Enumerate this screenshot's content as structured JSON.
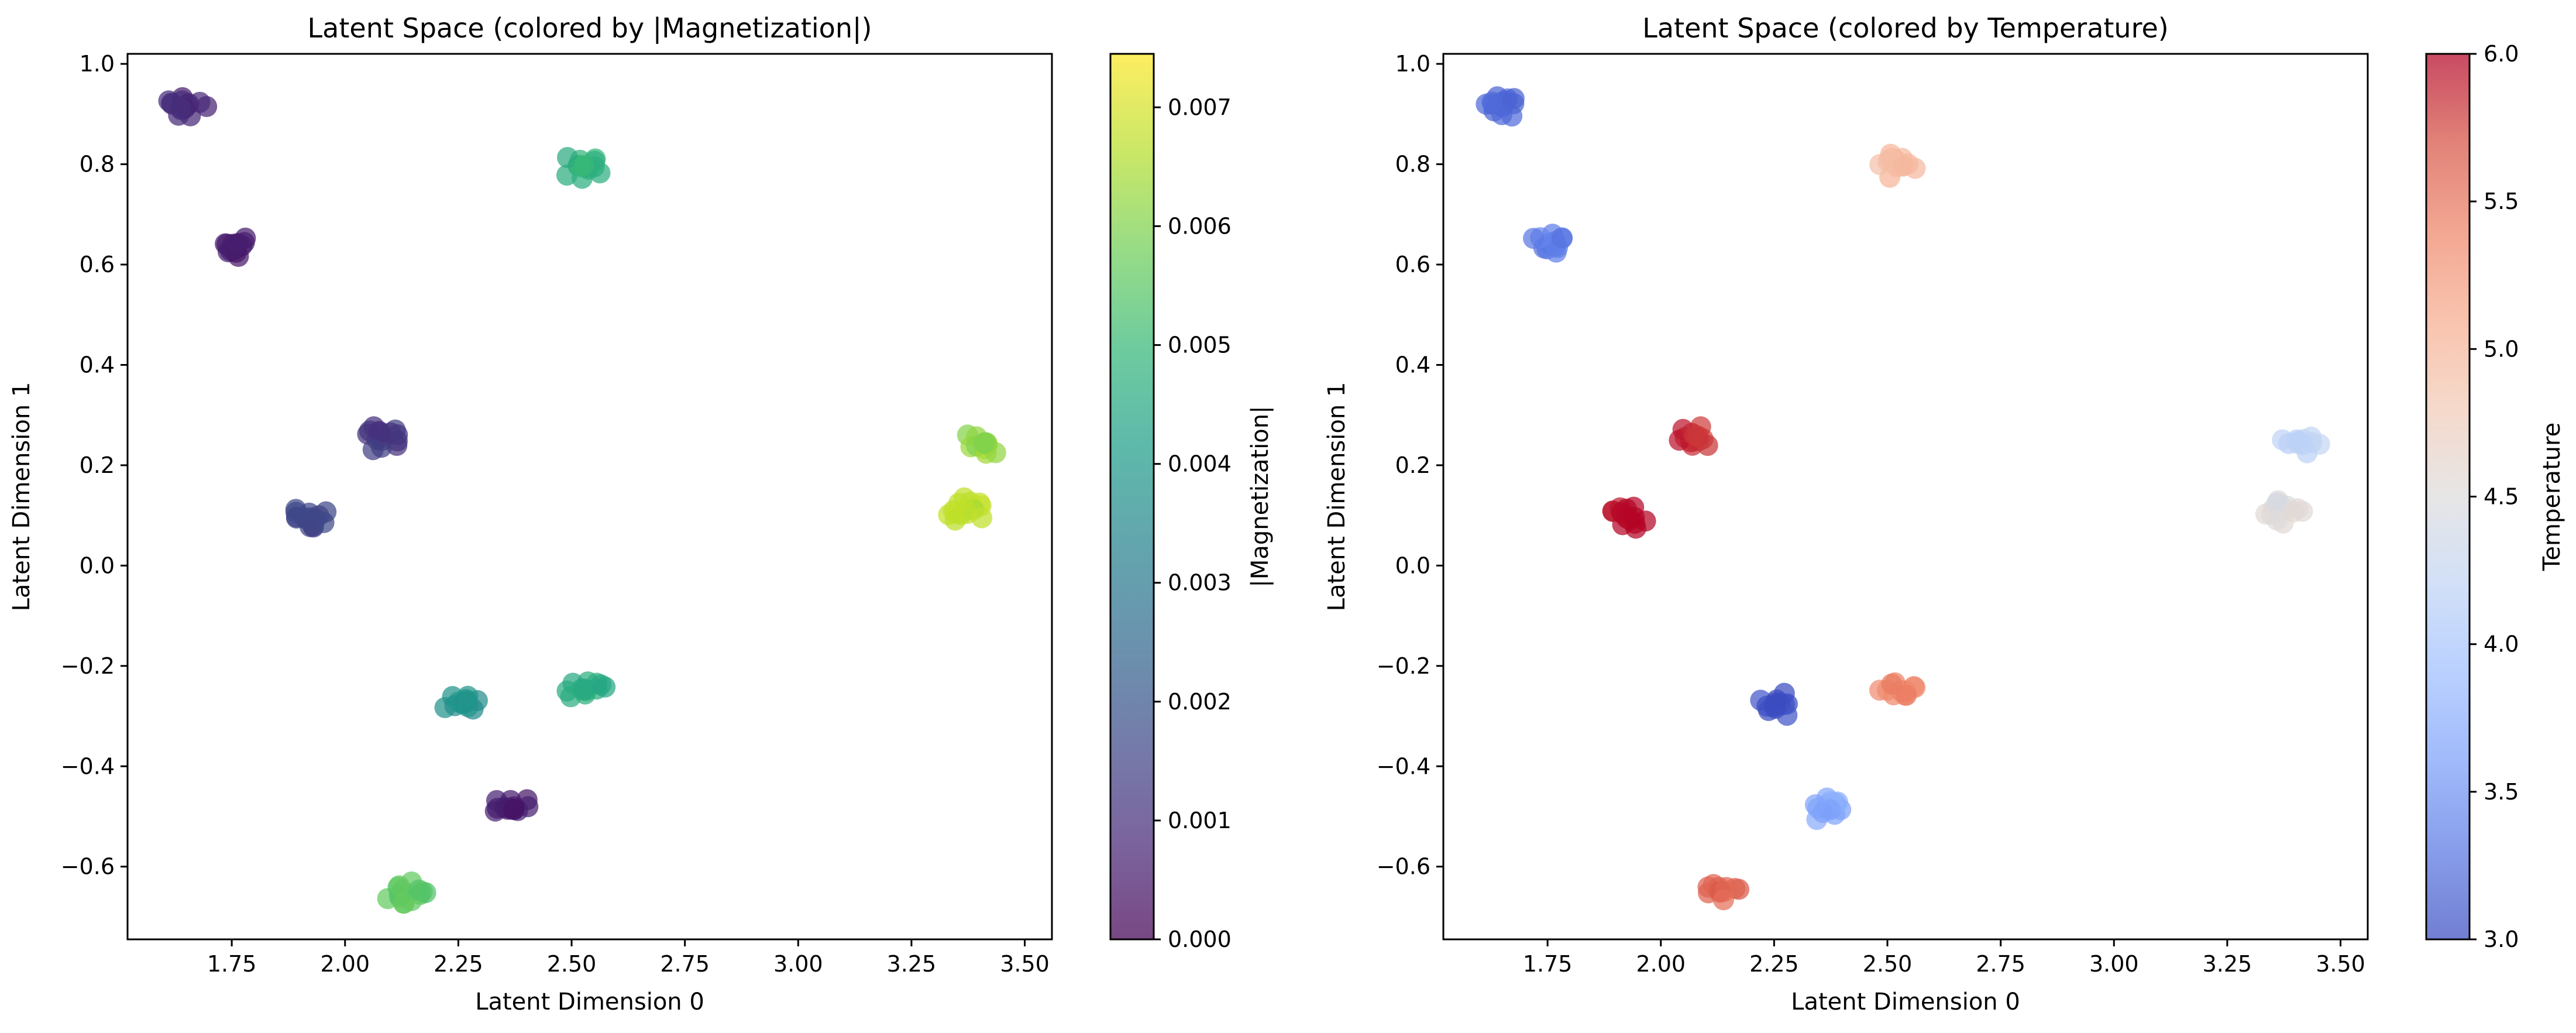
{
  "chart_data": [
    {
      "type": "scatter",
      "title": "Latent Space (colored by |Magnetization|)",
      "xlabel": "Latent Dimension 0",
      "ylabel": "Latent Dimension 1",
      "xlim": [
        1.52,
        3.56
      ],
      "ylim": [
        -0.745,
        1.02
      ],
      "xticks": [
        1.75,
        2.0,
        2.25,
        2.5,
        2.75,
        3.0,
        3.25,
        3.5
      ],
      "xtick_labels": [
        "1.75",
        "2.00",
        "2.25",
        "2.50",
        "2.75",
        "3.00",
        "3.25",
        "3.50"
      ],
      "yticks": [
        -0.6,
        -0.4,
        -0.2,
        0.0,
        0.2,
        0.4,
        0.6,
        0.8,
        1.0
      ],
      "ytick_labels": [
        "−0.6",
        "−0.4",
        "−0.2",
        "0.0",
        "0.2",
        "0.4",
        "0.6",
        "0.8",
        "1.0"
      ],
      "colorbar": {
        "label": "|Magnetization|",
        "colormap": "viridis",
        "range": [
          0.0,
          0.00745
        ],
        "ticks": [
          0.0,
          0.001,
          0.002,
          0.003,
          0.004,
          0.005,
          0.006,
          0.007
        ],
        "tick_labels": [
          "0.000",
          "0.001",
          "0.002",
          "0.003",
          "0.004",
          "0.005",
          "0.006",
          "0.007"
        ]
      },
      "clusters": [
        {
          "x": 1.65,
          "y": 0.915,
          "color_value": 0.0008
        },
        {
          "x": 1.76,
          "y": 0.64,
          "color_value": 0.0005
        },
        {
          "x": 2.52,
          "y": 0.795,
          "color_value": 0.0048
        },
        {
          "x": 2.08,
          "y": 0.255,
          "color_value": 0.0012
        },
        {
          "x": 1.92,
          "y": 0.095,
          "color_value": 0.0015
        },
        {
          "x": 3.41,
          "y": 0.245,
          "color_value": 0.0062
        },
        {
          "x": 3.37,
          "y": 0.11,
          "color_value": 0.0066
        },
        {
          "x": 2.26,
          "y": -0.275,
          "color_value": 0.0038
        },
        {
          "x": 2.53,
          "y": -0.25,
          "color_value": 0.0046
        },
        {
          "x": 2.37,
          "y": -0.485,
          "color_value": 0.0006
        },
        {
          "x": 2.13,
          "y": -0.65,
          "color_value": 0.0055
        }
      ]
    },
    {
      "type": "scatter",
      "title": "Latent Space (colored by Temperature)",
      "xlabel": "Latent Dimension 0",
      "ylabel": "Latent Dimension 1",
      "xlim": [
        1.52,
        3.56
      ],
      "ylim": [
        -0.745,
        1.02
      ],
      "xticks": [
        1.75,
        2.0,
        2.25,
        2.5,
        2.75,
        3.0,
        3.25,
        3.5
      ],
      "xtick_labels": [
        "1.75",
        "2.00",
        "2.25",
        "2.50",
        "2.75",
        "3.00",
        "3.25",
        "3.50"
      ],
      "yticks": [
        -0.6,
        -0.4,
        -0.2,
        0.0,
        0.2,
        0.4,
        0.6,
        0.8,
        1.0
      ],
      "ytick_labels": [
        "−0.6",
        "−0.4",
        "−0.2",
        "0.0",
        "0.2",
        "0.4",
        "0.6",
        "0.8",
        "1.0"
      ],
      "colorbar": {
        "label": "Temperature",
        "colormap": "coolwarm",
        "range": [
          3.0,
          6.0
        ],
        "ticks": [
          3.0,
          3.5,
          4.0,
          4.5,
          5.0,
          5.5,
          6.0
        ],
        "tick_labels": [
          "3.0",
          "3.5",
          "4.0",
          "4.5",
          "5.0",
          "5.5",
          "6.0"
        ]
      },
      "clusters": [
        {
          "x": 1.65,
          "y": 0.915,
          "color_value": 3.2
        },
        {
          "x": 1.76,
          "y": 0.64,
          "color_value": 3.35
        },
        {
          "x": 2.52,
          "y": 0.795,
          "color_value": 4.95
        },
        {
          "x": 2.08,
          "y": 0.255,
          "color_value": 5.85
        },
        {
          "x": 1.92,
          "y": 0.095,
          "color_value": 6.0
        },
        {
          "x": 3.41,
          "y": 0.245,
          "color_value": 4.2
        },
        {
          "x": 3.37,
          "y": 0.11,
          "color_value": 4.5
        },
        {
          "x": 2.26,
          "y": -0.275,
          "color_value": 3.0
        },
        {
          "x": 2.53,
          "y": -0.25,
          "color_value": 5.4
        },
        {
          "x": 2.37,
          "y": -0.485,
          "color_value": 3.7
        },
        {
          "x": 2.13,
          "y": -0.65,
          "color_value": 5.6
        }
      ]
    }
  ]
}
